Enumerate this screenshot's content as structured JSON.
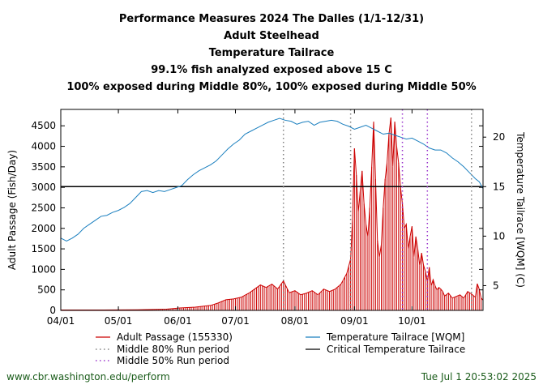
{
  "titles": {
    "line1": "Performance Measures 2024 The Dalles (1/1-12/31)",
    "line2": "Adult Steelhead",
    "line3": "Temperature Tailrace",
    "line4": "99.1% fish analyzed exposed above 15 C",
    "line5": "100% exposed during Middle 80%, 100% exposed during Middle 50%"
  },
  "footer": {
    "url": "www.cbr.washington.edu/perform",
    "timestamp": "Tue Jul  1 20:53:02 2025"
  },
  "colors": {
    "passage": "#cc0000",
    "temperature": "#1a7fbf",
    "critical": "#000000",
    "mid80": "#808080",
    "mid50": "#9933cc"
  },
  "chart_data": {
    "type": "line",
    "title": "Performance Measures 2024 The Dalles (1/1-12/31)",
    "xlabel": "",
    "ylabel": "Adult Passage (Fish/Day)",
    "y2label": "Temperature Tailrace [WQM] (C)",
    "x_ticks": [
      "04/01",
      "05/01",
      "06/01",
      "07/01",
      "08/01",
      "09/01",
      "10/01"
    ],
    "x_tick_days": [
      0,
      30,
      61,
      91,
      122,
      153,
      183
    ],
    "x_range_days": [
      0,
      220
    ],
    "ylim": [
      0,
      4900
    ],
    "y_ticks": [
      0,
      500,
      1000,
      1500,
      2000,
      2500,
      3000,
      3500,
      4000,
      4500
    ],
    "y2lim": [
      2.5,
      22.8
    ],
    "y2_ticks": [
      5,
      10,
      15,
      20
    ],
    "critical_temperature": 15,
    "middle80_days": [
      116,
      151,
      214
    ],
    "middle50_days": [
      178,
      191
    ],
    "series": [
      {
        "name": "Adult Passage (155330)",
        "axis": "left",
        "style": "impulse",
        "points": [
          [
            0,
            10
          ],
          [
            20,
            10
          ],
          [
            40,
            15
          ],
          [
            55,
            30
          ],
          [
            62,
            60
          ],
          [
            70,
            80
          ],
          [
            78,
            120
          ],
          [
            82,
            180
          ],
          [
            86,
            260
          ],
          [
            90,
            280
          ],
          [
            94,
            320
          ],
          [
            98,
            420
          ],
          [
            101,
            520
          ],
          [
            104,
            620
          ],
          [
            107,
            560
          ],
          [
            110,
            640
          ],
          [
            113,
            520
          ],
          [
            116,
            720
          ],
          [
            119,
            430
          ],
          [
            122,
            480
          ],
          [
            125,
            380
          ],
          [
            128,
            420
          ],
          [
            131,
            480
          ],
          [
            134,
            380
          ],
          [
            137,
            520
          ],
          [
            140,
            460
          ],
          [
            143,
            520
          ],
          [
            146,
            640
          ],
          [
            149,
            900
          ],
          [
            151,
            1250
          ],
          [
            152,
            2200
          ],
          [
            153,
            3950
          ],
          [
            154,
            3300
          ],
          [
            155,
            2400
          ],
          [
            156,
            2900
          ],
          [
            157,
            3400
          ],
          [
            158,
            2600
          ],
          [
            159,
            2100
          ],
          [
            160,
            1800
          ],
          [
            161,
            2500
          ],
          [
            162,
            3500
          ],
          [
            163,
            4600
          ],
          [
            164,
            3200
          ],
          [
            165,
            1700
          ],
          [
            166,
            1300
          ],
          [
            167,
            1600
          ],
          [
            168,
            2500
          ],
          [
            169,
            3200
          ],
          [
            170,
            3600
          ],
          [
            171,
            4300
          ],
          [
            172,
            4700
          ],
          [
            173,
            3500
          ],
          [
            174,
            4600
          ],
          [
            175,
            4000
          ],
          [
            176,
            3600
          ],
          [
            177,
            3000
          ],
          [
            178,
            2600
          ],
          [
            179,
            2000
          ],
          [
            180,
            2100
          ],
          [
            181,
            1500
          ],
          [
            182,
            1800
          ],
          [
            183,
            2050
          ],
          [
            184,
            1300
          ],
          [
            185,
            1800
          ],
          [
            186,
            1500
          ],
          [
            187,
            1100
          ],
          [
            188,
            1400
          ],
          [
            189,
            1100
          ],
          [
            190,
            950
          ],
          [
            191,
            700
          ],
          [
            192,
            1050
          ],
          [
            193,
            600
          ],
          [
            194,
            750
          ],
          [
            195,
            600
          ],
          [
            196,
            500
          ],
          [
            197,
            560
          ],
          [
            198,
            520
          ],
          [
            199,
            460
          ],
          [
            200,
            350
          ],
          [
            202,
            420
          ],
          [
            204,
            300
          ],
          [
            206,
            340
          ],
          [
            208,
            380
          ],
          [
            210,
            300
          ],
          [
            212,
            460
          ],
          [
            214,
            400
          ],
          [
            216,
            320
          ],
          [
            217,
            650
          ],
          [
            218,
            520
          ],
          [
            219,
            300
          ],
          [
            220,
            250
          ]
        ]
      },
      {
        "name": "Temperature Tailrace [WQM]",
        "axis": "right",
        "style": "line",
        "points": [
          [
            0,
            9.8
          ],
          [
            3,
            9.5
          ],
          [
            6,
            9.8
          ],
          [
            9,
            10.2
          ],
          [
            12,
            10.8
          ],
          [
            15,
            11.2
          ],
          [
            18,
            11.6
          ],
          [
            21,
            12.0
          ],
          [
            24,
            12.1
          ],
          [
            27,
            12.4
          ],
          [
            30,
            12.6
          ],
          [
            33,
            12.9
          ],
          [
            36,
            13.3
          ],
          [
            39,
            13.9
          ],
          [
            42,
            14.5
          ],
          [
            45,
            14.6
          ],
          [
            48,
            14.4
          ],
          [
            51,
            14.6
          ],
          [
            54,
            14.5
          ],
          [
            57,
            14.7
          ],
          [
            60,
            14.9
          ],
          [
            63,
            15.1
          ],
          [
            66,
            15.7
          ],
          [
            69,
            16.2
          ],
          [
            72,
            16.6
          ],
          [
            75,
            16.9
          ],
          [
            78,
            17.2
          ],
          [
            81,
            17.6
          ],
          [
            84,
            18.2
          ],
          [
            87,
            18.8
          ],
          [
            90,
            19.3
          ],
          [
            93,
            19.7
          ],
          [
            96,
            20.3
          ],
          [
            99,
            20.6
          ],
          [
            102,
            20.9
          ],
          [
            105,
            21.2
          ],
          [
            108,
            21.5
          ],
          [
            111,
            21.7
          ],
          [
            114,
            21.9
          ],
          [
            117,
            21.7
          ],
          [
            120,
            21.6
          ],
          [
            123,
            21.3
          ],
          [
            126,
            21.5
          ],
          [
            129,
            21.6
          ],
          [
            132,
            21.2
          ],
          [
            135,
            21.5
          ],
          [
            138,
            21.6
          ],
          [
            141,
            21.7
          ],
          [
            144,
            21.6
          ],
          [
            147,
            21.3
          ],
          [
            150,
            21.1
          ],
          [
            153,
            20.8
          ],
          [
            156,
            21.0
          ],
          [
            159,
            21.2
          ],
          [
            162,
            20.9
          ],
          [
            165,
            20.6
          ],
          [
            168,
            20.3
          ],
          [
            171,
            20.4
          ],
          [
            174,
            20.2
          ],
          [
            177,
            20.0
          ],
          [
            180,
            19.8
          ],
          [
            183,
            19.9
          ],
          [
            186,
            19.6
          ],
          [
            189,
            19.3
          ],
          [
            192,
            18.9
          ],
          [
            195,
            18.7
          ],
          [
            198,
            18.7
          ],
          [
            201,
            18.4
          ],
          [
            204,
            17.9
          ],
          [
            207,
            17.5
          ],
          [
            210,
            17.0
          ],
          [
            213,
            16.4
          ],
          [
            216,
            15.8
          ],
          [
            218,
            15.5
          ],
          [
            220,
            14.8
          ]
        ]
      }
    ],
    "legend": [
      {
        "label": "Adult Passage (155330)",
        "style": "solid",
        "color_key": "passage"
      },
      {
        "label": "Temperature Tailrace [WQM]",
        "style": "solid",
        "color_key": "temperature"
      },
      {
        "label": "Middle 80% Run period",
        "style": "dotted",
        "color_key": "mid80"
      },
      {
        "label": "Critical Temperature Tailrace",
        "style": "solid",
        "color_key": "critical"
      },
      {
        "label": "Middle 50% Run period",
        "style": "dotted",
        "color_key": "mid50"
      }
    ],
    "legend_position": "bottom"
  }
}
